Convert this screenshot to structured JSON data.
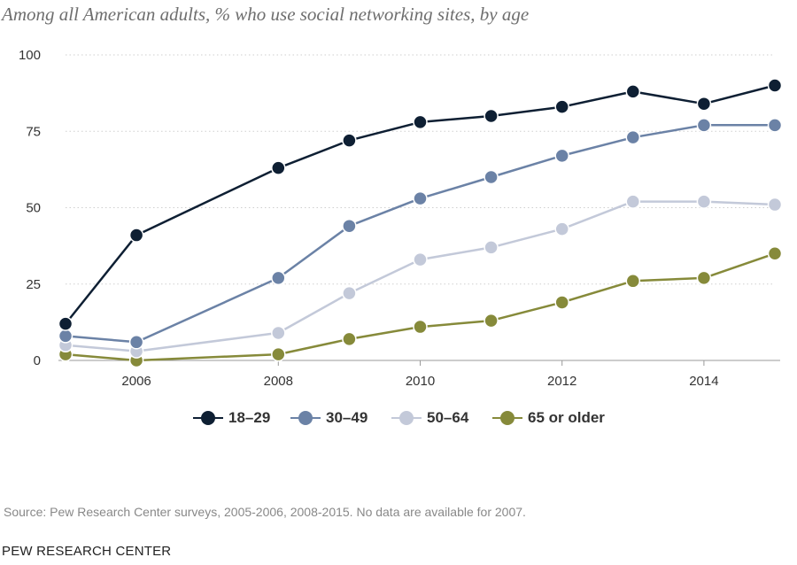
{
  "chart_data": {
    "type": "line",
    "title": "Among all American adults, % who use social networking sites, by age",
    "xlabel": "",
    "ylabel": "",
    "xlim": [
      2005,
      2015
    ],
    "ylim": [
      0,
      100
    ],
    "y_ticks": [
      0,
      25,
      50,
      75,
      100
    ],
    "x_ticks": [
      2006,
      2008,
      2010,
      2012,
      2014
    ],
    "grid": "horizontal dotted",
    "legend_position": "bottom",
    "series": [
      {
        "name": "18–29",
        "color": "#0e1f33",
        "x": [
          2005,
          2006,
          2008,
          2009,
          2010,
          2011,
          2012,
          2013,
          2014,
          2015
        ],
        "values": [
          12,
          41,
          63,
          72,
          78,
          80,
          83,
          88,
          84,
          90
        ]
      },
      {
        "name": "30–49",
        "color": "#6b82a6",
        "x": [
          2005,
          2006,
          2008,
          2009,
          2010,
          2011,
          2012,
          2013,
          2014,
          2015
        ],
        "values": [
          8,
          6,
          27,
          44,
          53,
          60,
          67,
          73,
          77,
          77
        ]
      },
      {
        "name": "50–64",
        "color": "#c3c9d9",
        "x": [
          2005,
          2006,
          2008,
          2009,
          2010,
          2011,
          2012,
          2013,
          2014,
          2015
        ],
        "values": [
          5,
          3,
          9,
          22,
          33,
          37,
          43,
          52,
          52,
          51
        ]
      },
      {
        "name": "65 or older",
        "color": "#868a3a",
        "x": [
          2005,
          2006,
          2008,
          2009,
          2010,
          2011,
          2012,
          2013,
          2014,
          2015
        ],
        "values": [
          2,
          0,
          2,
          7,
          11,
          13,
          19,
          26,
          27,
          35
        ]
      }
    ]
  },
  "source": "Source: Pew Research Center surveys, 2005-2006, 2008-2015. No data are available for 2007.",
  "brand": "PEW RESEARCH CENTER"
}
